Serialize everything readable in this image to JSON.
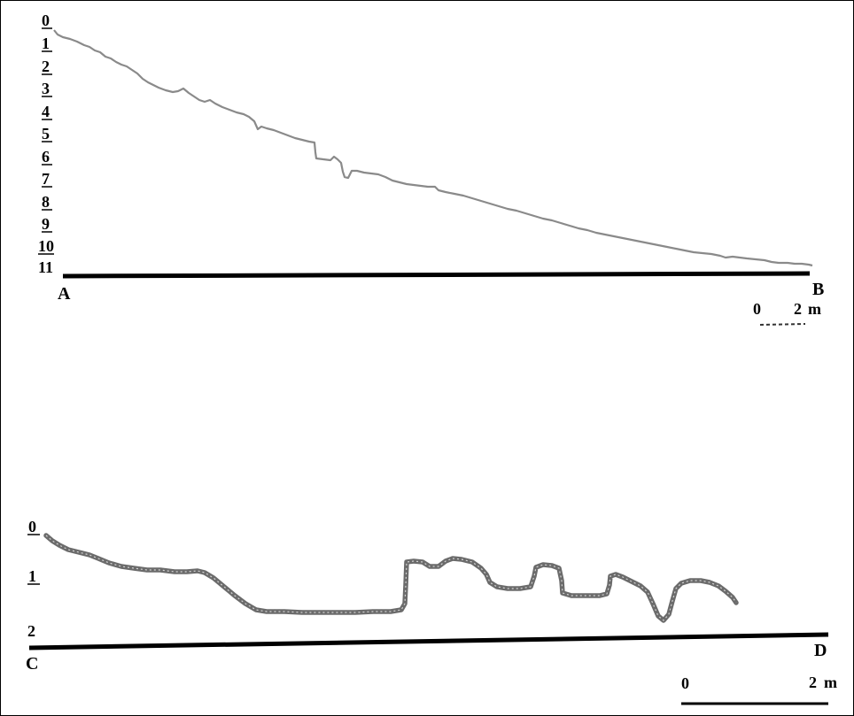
{
  "profile_ab": {
    "depth_labels": [
      "0",
      "1",
      "2",
      "3",
      "4",
      "5",
      "6",
      "7",
      "8",
      "9",
      "10",
      "11"
    ],
    "start_label": "A",
    "end_label": "B",
    "scale": {
      "start_label": "0",
      "end_label": "2",
      "unit": "m"
    }
  },
  "profile_cd": {
    "depth_labels": [
      "0",
      "1",
      "2"
    ],
    "start_label": "C",
    "end_label": "D",
    "scale": {
      "start_label": "0",
      "end_label": "2",
      "unit": "m"
    }
  }
}
